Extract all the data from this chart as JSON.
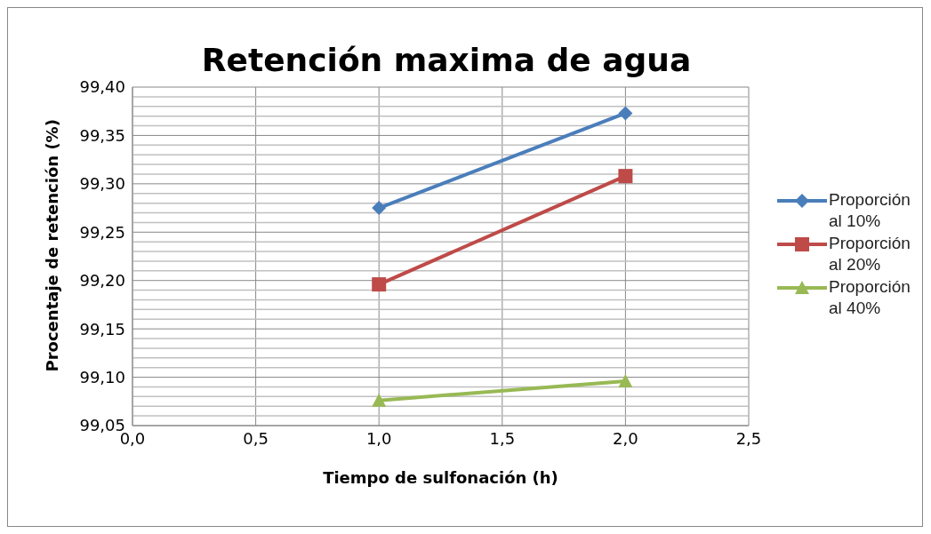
{
  "chart_data": {
    "type": "line",
    "title": "Retención maxima de agua",
    "xlabel": "Tiempo de sulfonación (h)",
    "ylabel": "Procentaje de retención (%)",
    "x": [
      1,
      2
    ],
    "series": [
      {
        "name": "Proporción al 10%",
        "color": "#4a7ebb",
        "values": [
          99.275,
          99.373
        ],
        "marker": "diamond"
      },
      {
        "name": "Proporción al 20%",
        "color": "#be4b48",
        "values": [
          99.196,
          99.308
        ],
        "marker": "square"
      },
      {
        "name": "Proporción al 40%",
        "color": "#98b954",
        "values": [
          99.076,
          99.096
        ],
        "marker": "triangle"
      }
    ],
    "xlim": [
      0,
      2.5
    ],
    "xticks": [
      {
        "value": 0,
        "label": "0,0"
      },
      {
        "value": 0.5,
        "label": "0,5"
      },
      {
        "value": 1,
        "label": "1,0"
      },
      {
        "value": 1.5,
        "label": "1,5"
      },
      {
        "value": 2,
        "label": "2,0"
      },
      {
        "value": 2.5,
        "label": "2,5"
      }
    ],
    "ylim": [
      99.05,
      99.4
    ],
    "yticks": [
      {
        "value": 99.05,
        "label": "99,05"
      },
      {
        "value": 99.06,
        "label": null
      },
      {
        "value": 99.07,
        "label": null
      },
      {
        "value": 99.08,
        "label": null
      },
      {
        "value": 99.09,
        "label": null
      },
      {
        "value": 99.1,
        "label": "99,10"
      },
      {
        "value": 99.11,
        "label": null
      },
      {
        "value": 99.12,
        "label": null
      },
      {
        "value": 99.13,
        "label": null
      },
      {
        "value": 99.14,
        "label": null
      },
      {
        "value": 99.15,
        "label": "99,15"
      },
      {
        "value": 99.16,
        "label": null
      },
      {
        "value": 99.17,
        "label": null
      },
      {
        "value": 99.18,
        "label": null
      },
      {
        "value": 99.19,
        "label": null
      },
      {
        "value": 99.2,
        "label": "99,20"
      },
      {
        "value": 99.21,
        "label": null
      },
      {
        "value": 99.22,
        "label": null
      },
      {
        "value": 99.23,
        "label": null
      },
      {
        "value": 99.24,
        "label": null
      },
      {
        "value": 99.25,
        "label": "99,25"
      },
      {
        "value": 99.26,
        "label": null
      },
      {
        "value": 99.27,
        "label": null
      },
      {
        "value": 99.28,
        "label": null
      },
      {
        "value": 99.29,
        "label": null
      },
      {
        "value": 99.3,
        "label": "99,30"
      },
      {
        "value": 99.31,
        "label": null
      },
      {
        "value": 99.32,
        "label": null
      },
      {
        "value": 99.33,
        "label": null
      },
      {
        "value": 99.34,
        "label": null
      },
      {
        "value": 99.35,
        "label": "99,35"
      },
      {
        "value": 99.36,
        "label": null
      },
      {
        "value": 99.37,
        "label": null
      },
      {
        "value": 99.38,
        "label": null
      },
      {
        "value": 99.39,
        "label": null
      },
      {
        "value": 99.4,
        "label": "99,40"
      }
    ],
    "grid": true,
    "legend": "right",
    "line_style": "solid"
  }
}
